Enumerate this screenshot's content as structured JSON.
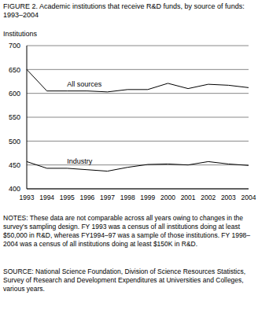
{
  "chart_data": {
    "type": "line",
    "title": "FIGURE 2. Academic institutions that receive R&D funds, by source of funds: 1993–2004",
    "y_label": "Institutions",
    "categories": [
      "1993",
      "1994",
      "1995",
      "1996",
      "1997",
      "1998",
      "1999",
      "2000",
      "2001",
      "2002",
      "2003",
      "2004"
    ],
    "series": [
      {
        "name": "All sources",
        "color": "#000000",
        "values": [
          650,
          605,
          605,
          605,
          603,
          608,
          608,
          621,
          610,
          619,
          617,
          612
        ]
      },
      {
        "name": "Industry",
        "color": "#000000",
        "values": [
          457,
          443,
          443,
          440,
          437,
          445,
          451,
          452,
          450,
          457,
          452,
          449
        ]
      }
    ],
    "ylim": [
      400,
      700
    ],
    "yticks": [
      400,
      450,
      500,
      550,
      600,
      650,
      700
    ],
    "grid": true,
    "notes": "NOTES:  These data are not comparable across all years owing to changes in the survey's sampling design. FY 1993 was a census of all institutions doing at least $50,000 in R&D, whereas FY1994–97 was a sample of those institutions. FY 1998–2004 was a census of all institutions doing at least $150K in R&D.",
    "source": "SOURCE:  National Science Foundation, Division of Science Resources Statistics, Survey of Research and Development Expenditures at Universities and Colleges, various years."
  }
}
